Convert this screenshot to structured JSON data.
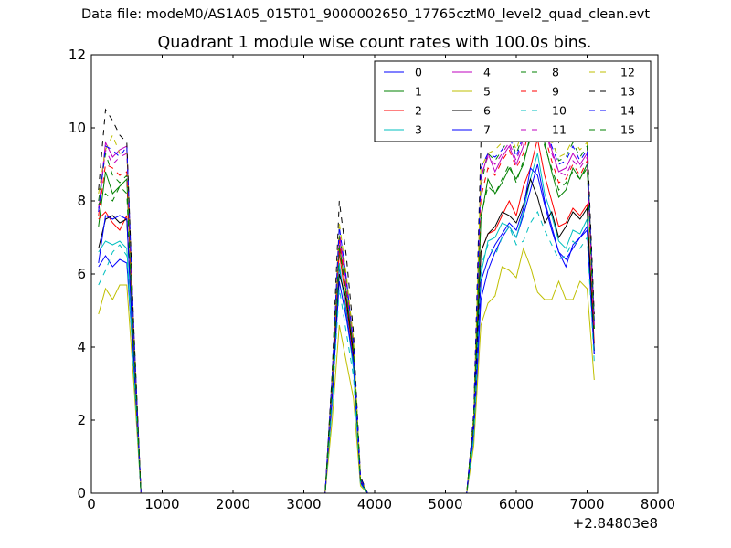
{
  "suptitle": "Data file: modeM0/AS1A05_015T01_9000002650_17765cztM0_level2_quad_clean.evt",
  "chart_data": {
    "type": "line",
    "title": "Quadrant 1 module wise count rates with 100.0s bins.",
    "xlabel": "",
    "ylabel": "",
    "xlim": [
      0,
      8000
    ],
    "ylim": [
      0,
      12
    ],
    "x_offset_label": "+2.84803e8",
    "xticks": [
      0,
      1000,
      2000,
      3000,
      4000,
      5000,
      6000,
      7000,
      8000
    ],
    "yticks": [
      0,
      2,
      4,
      6,
      8,
      10,
      12
    ],
    "grid": false,
    "legend_position": "top-right",
    "legend_columns": 4,
    "x": [
      100,
      200,
      300,
      400,
      500,
      600,
      700,
      800,
      900,
      1000,
      1100,
      1200,
      1300,
      1400,
      1500,
      1600,
      1700,
      1800,
      1900,
      2000,
      2100,
      2200,
      2300,
      2400,
      2500,
      2600,
      2700,
      2800,
      2900,
      3000,
      3100,
      3200,
      3300,
      3400,
      3500,
      3600,
      3700,
      3800,
      3900,
      4000,
      4100,
      4200,
      4300,
      4400,
      4500,
      4600,
      4700,
      4800,
      4900,
      5000,
      5100,
      5200,
      5300,
      5400,
      5500,
      5600,
      5700,
      5800,
      5900,
      6000,
      6100,
      6200,
      6300,
      6400,
      6500,
      6600,
      6700,
      6800,
      6900,
      7000,
      7100
    ],
    "series": [
      {
        "name": "0",
        "color": "#0000ff",
        "dash": "solid",
        "values": [
          6.2,
          6.5,
          6.2,
          6.4,
          6.3,
          3.5,
          0,
          0,
          0,
          0,
          0,
          0,
          0,
          0,
          0,
          0,
          0,
          0,
          0,
          0,
          0,
          0,
          0,
          0,
          0,
          0,
          0,
          0,
          0,
          0,
          0,
          0,
          0,
          2.5,
          6.2,
          5.0,
          3.5,
          0.3,
          0,
          0,
          0,
          0,
          0,
          0,
          0,
          0,
          0,
          0,
          0,
          0,
          0,
          0,
          0,
          1.5,
          5.3,
          6.1,
          6.6,
          7.0,
          7.3,
          7.0,
          7.6,
          8.3,
          9.0,
          8.0,
          7.3,
          6.6,
          6.2,
          6.8,
          7.0,
          7.3,
          3.8
        ]
      },
      {
        "name": "1",
        "color": "#008000",
        "dash": "solid",
        "values": [
          7.3,
          8.8,
          8.2,
          8.4,
          8.6,
          4.0,
          0,
          0,
          0,
          0,
          0,
          0,
          0,
          0,
          0,
          0,
          0,
          0,
          0,
          0,
          0,
          0,
          0,
          0,
          0,
          0,
          0,
          0,
          0,
          0,
          0,
          0,
          0,
          3.0,
          6.8,
          5.5,
          3.9,
          0.35,
          0,
          0,
          0,
          0,
          0,
          0,
          0,
          0,
          0,
          0,
          0,
          0,
          0,
          0,
          0,
          2.0,
          7.5,
          8.6,
          8.2,
          8.5,
          8.9,
          8.6,
          9.0,
          9.8,
          10.3,
          9.6,
          8.8,
          8.1,
          8.3,
          8.9,
          8.6,
          9.0,
          4.5
        ]
      },
      {
        "name": "2",
        "color": "#ff0000",
        "dash": "solid",
        "values": [
          7.5,
          7.7,
          7.4,
          7.2,
          7.6,
          3.7,
          0,
          0,
          0,
          0,
          0,
          0,
          0,
          0,
          0,
          0,
          0,
          0,
          0,
          0,
          0,
          0,
          0,
          0,
          0,
          0,
          0,
          0,
          0,
          0,
          0,
          0,
          0,
          2.8,
          6.6,
          5.2,
          3.7,
          0.3,
          0,
          0,
          0,
          0,
          0,
          0,
          0,
          0,
          0,
          0,
          0,
          0,
          0,
          0,
          0,
          1.8,
          6.6,
          7.1,
          7.2,
          7.6,
          8.0,
          7.6,
          8.4,
          8.9,
          9.7,
          8.7,
          8.0,
          7.3,
          7.4,
          7.8,
          7.6,
          7.9,
          4.1
        ]
      },
      {
        "name": "3",
        "color": "#00bfbf",
        "dash": "solid",
        "values": [
          6.6,
          6.9,
          6.8,
          6.9,
          6.7,
          3.4,
          0,
          0,
          0,
          0,
          0,
          0,
          0,
          0,
          0,
          0,
          0,
          0,
          0,
          0,
          0,
          0,
          0,
          0,
          0,
          0,
          0,
          0,
          0,
          0,
          0,
          0,
          0,
          2.6,
          6.3,
          4.9,
          3.4,
          0.25,
          0,
          0,
          0,
          0,
          0,
          0,
          0,
          0,
          0,
          0,
          0,
          0,
          0,
          0,
          0,
          1.6,
          6.0,
          6.9,
          7.0,
          7.4,
          7.3,
          7.0,
          7.7,
          8.6,
          9.3,
          8.2,
          7.6,
          6.9,
          6.7,
          7.2,
          7.1,
          7.5,
          3.9
        ]
      },
      {
        "name": "4",
        "color": "#bf00bf",
        "dash": "solid",
        "values": [
          7.7,
          9.6,
          9.2,
          9.4,
          9.5,
          4.4,
          0,
          0,
          0,
          0,
          0,
          0,
          0,
          0,
          0,
          0,
          0,
          0,
          0,
          0,
          0,
          0,
          0,
          0,
          0,
          0,
          0,
          0,
          0,
          0,
          0,
          0,
          0,
          3.2,
          7.0,
          5.8,
          4.1,
          0.4,
          0,
          0,
          0,
          0,
          0,
          0,
          0,
          0,
          0,
          0,
          0,
          0,
          0,
          0,
          0,
          2.1,
          8.6,
          9.3,
          8.8,
          9.2,
          9.5,
          9.0,
          9.5,
          10.4,
          11.2,
          10.1,
          9.4,
          8.8,
          8.9,
          9.3,
          9.0,
          9.3,
          4.7
        ]
      },
      {
        "name": "5",
        "color": "#bfbf00",
        "dash": "solid",
        "values": [
          4.9,
          5.6,
          5.3,
          5.7,
          5.7,
          3.0,
          0,
          0,
          0,
          0,
          0,
          0,
          0,
          0,
          0,
          0,
          0,
          0,
          0,
          0,
          0,
          0,
          0,
          0,
          0,
          0,
          0,
          0,
          0,
          0,
          0,
          0,
          0,
          2.0,
          4.6,
          3.6,
          2.6,
          0.2,
          0,
          0,
          0,
          0,
          0,
          0,
          0,
          0,
          0,
          0,
          0,
          0,
          0,
          0,
          0,
          1.3,
          4.6,
          5.2,
          5.4,
          6.2,
          6.1,
          5.9,
          6.7,
          6.2,
          5.5,
          5.3,
          5.3,
          5.8,
          5.3,
          5.3,
          5.8,
          5.6,
          3.1
        ]
      },
      {
        "name": "6",
        "color": "#000000",
        "dash": "solid",
        "values": [
          6.7,
          7.5,
          7.6,
          7.4,
          7.5,
          3.7,
          0,
          0,
          0,
          0,
          0,
          0,
          0,
          0,
          0,
          0,
          0,
          0,
          0,
          0,
          0,
          0,
          0,
          0,
          0,
          0,
          0,
          0,
          0,
          0,
          0,
          0,
          0,
          2.7,
          6.0,
          5.3,
          3.8,
          0.3,
          0,
          0,
          0,
          0,
          0,
          0,
          0,
          0,
          0,
          0,
          0,
          0,
          0,
          0,
          0,
          1.9,
          6.6,
          7.1,
          7.3,
          7.7,
          7.6,
          7.4,
          7.9,
          8.6,
          8.1,
          7.4,
          7.7,
          7.0,
          7.3,
          7.7,
          7.5,
          7.8,
          3.9
        ]
      },
      {
        "name": "7",
        "color": "#0000ff",
        "dash": "solid",
        "values": [
          6.3,
          7.6,
          7.5,
          7.6,
          7.5,
          3.6,
          0,
          0,
          0,
          0,
          0,
          0,
          0,
          0,
          0,
          0,
          0,
          0,
          0,
          0,
          0,
          0,
          0,
          0,
          0,
          0,
          0,
          0,
          0,
          0,
          0,
          0,
          0,
          2.6,
          5.8,
          4.8,
          3.6,
          0.3,
          0,
          0,
          0,
          0,
          0,
          0,
          0,
          0,
          0,
          0,
          0,
          0,
          0,
          0,
          0,
          1.7,
          5.8,
          6.4,
          6.8,
          7.1,
          7.4,
          7.2,
          7.8,
          8.9,
          8.7,
          7.9,
          7.2,
          6.6,
          6.4,
          6.7,
          7.0,
          7.2,
          3.8
        ]
      },
      {
        "name": "8",
        "color": "#008000",
        "dash": "dashed",
        "values": [
          8.0,
          9.3,
          8.7,
          8.5,
          8.7,
          4.1,
          0,
          0,
          0,
          0,
          0,
          0,
          0,
          0,
          0,
          0,
          0,
          0,
          0,
          0,
          0,
          0,
          0,
          0,
          0,
          0,
          0,
          0,
          0,
          0,
          0,
          0,
          0,
          3.1,
          7.1,
          5.9,
          4.2,
          0.4,
          0,
          0,
          0,
          0,
          0,
          0,
          0,
          0,
          0,
          0,
          0,
          0,
          0,
          0,
          0,
          2.1,
          8.4,
          9.3,
          9.1,
          9.4,
          9.7,
          9.3,
          9.8,
          10.6,
          11.6,
          10.4,
          9.7,
          9.1,
          9.2,
          9.6,
          9.2,
          9.5,
          4.6
        ]
      },
      {
        "name": "9",
        "color": "#ff0000",
        "dash": "dashed",
        "values": [
          7.6,
          9.0,
          8.9,
          8.7,
          8.8,
          4.2,
          0,
          0,
          0,
          0,
          0,
          0,
          0,
          0,
          0,
          0,
          0,
          0,
          0,
          0,
          0,
          0,
          0,
          0,
          0,
          0,
          0,
          0,
          0,
          0,
          0,
          0,
          0,
          3.0,
          6.9,
          5.6,
          4.0,
          0.35,
          0,
          0,
          0,
          0,
          0,
          0,
          0,
          0,
          0,
          0,
          0,
          0,
          0,
          0,
          0,
          2.0,
          8.1,
          8.9,
          8.7,
          9.1,
          9.4,
          8.9,
          9.3,
          10.1,
          10.8,
          9.8,
          9.1,
          8.5,
          8.6,
          9.0,
          8.7,
          9.1,
          4.4
        ]
      },
      {
        "name": "10",
        "color": "#00bfbf",
        "dash": "dashed",
        "values": [
          5.7,
          6.1,
          6.6,
          6.8,
          6.5,
          3.3,
          0,
          0,
          0,
          0,
          0,
          0,
          0,
          0,
          0,
          0,
          0,
          0,
          0,
          0,
          0,
          0,
          0,
          0,
          0,
          0,
          0,
          0,
          0,
          0,
          0,
          0,
          0,
          2.4,
          5.6,
          4.4,
          3.2,
          0.25,
          0,
          0,
          0,
          0,
          0,
          0,
          0,
          0,
          0,
          0,
          0,
          0,
          0,
          0,
          0,
          1.5,
          6.2,
          6.8,
          6.5,
          7.0,
          7.3,
          6.8,
          6.9,
          7.4,
          7.7,
          7.2,
          6.8,
          6.4,
          6.5,
          6.9,
          6.7,
          7.0,
          3.6
        ]
      },
      {
        "name": "11",
        "color": "#bf00bf",
        "dash": "dashed",
        "values": [
          7.8,
          9.4,
          9.0,
          9.2,
          9.3,
          4.3,
          0,
          0,
          0,
          0,
          0,
          0,
          0,
          0,
          0,
          0,
          0,
          0,
          0,
          0,
          0,
          0,
          0,
          0,
          0,
          0,
          0,
          0,
          0,
          0,
          0,
          0,
          0,
          3.1,
          7.2,
          5.7,
          4.0,
          0.4,
          0,
          0,
          0,
          0,
          0,
          0,
          0,
          0,
          0,
          0,
          0,
          0,
          0,
          0,
          0,
          2.1,
          8.7,
          9.2,
          9.0,
          9.3,
          9.6,
          9.1,
          9.7,
          10.5,
          11.0,
          10.0,
          9.3,
          8.8,
          8.7,
          9.1,
          8.9,
          9.2,
          4.6
        ]
      },
      {
        "name": "12",
        "color": "#bfbf00",
        "dash": "dashed",
        "values": [
          8.2,
          9.4,
          9.8,
          9.3,
          9.4,
          4.4,
          0,
          0,
          0,
          0,
          0,
          0,
          0,
          0,
          0,
          0,
          0,
          0,
          0,
          0,
          0,
          0,
          0,
          0,
          0,
          0,
          0,
          0,
          0,
          0,
          0,
          0,
          0,
          3.1,
          7.4,
          6.0,
          4.2,
          0.4,
          0,
          0,
          0,
          0,
          0,
          0,
          0,
          0,
          0,
          0,
          0,
          0,
          0,
          0,
          0,
          2.1,
          8.9,
          9.3,
          9.4,
          9.6,
          9.9,
          9.4,
          10.0,
          10.8,
          11.5,
          10.3,
          9.6,
          9.2,
          9.3,
          9.7,
          9.4,
          9.6,
          4.7
        ]
      },
      {
        "name": "13",
        "color": "#000000",
        "dash": "dashed",
        "values": [
          8.3,
          10.5,
          10.2,
          9.8,
          9.6,
          4.5,
          0,
          0,
          0,
          0,
          0,
          0,
          0,
          0,
          0,
          0,
          0,
          0,
          0,
          0,
          0,
          0,
          0,
          0,
          0,
          0,
          0,
          0,
          0,
          0,
          0,
          0,
          0,
          3.3,
          8.0,
          6.5,
          4.4,
          0.45,
          0,
          0,
          0,
          0,
          0,
          0,
          0,
          0,
          0,
          0,
          0,
          0,
          0,
          0,
          0,
          2.2,
          9.6,
          10.4,
          9.8,
          10.3,
          10.6,
          9.9,
          10.9,
          11.6,
          11.8,
          10.9,
          10.3,
          9.6,
          9.9,
          10.1,
          9.6,
          9.8,
          4.9
        ]
      },
      {
        "name": "14",
        "color": "#0000ff",
        "dash": "dashed",
        "values": [
          7.7,
          9.5,
          9.4,
          9.2,
          9.5,
          4.4,
          0,
          0,
          0,
          0,
          0,
          0,
          0,
          0,
          0,
          0,
          0,
          0,
          0,
          0,
          0,
          0,
          0,
          0,
          0,
          0,
          0,
          0,
          0,
          0,
          0,
          0,
          0,
          3.2,
          7.3,
          5.9,
          4.1,
          0.4,
          0,
          0,
          0,
          0,
          0,
          0,
          0,
          0,
          0,
          0,
          0,
          0,
          0,
          0,
          0,
          2.1,
          8.9,
          9.3,
          9.2,
          9.4,
          9.8,
          9.2,
          9.8,
          10.6,
          11.3,
          10.2,
          9.5,
          9.0,
          9.1,
          9.5,
          9.1,
          9.4,
          4.7
        ]
      },
      {
        "name": "15",
        "color": "#008000",
        "dash": "dashed",
        "values": [
          7.9,
          8.2,
          8.0,
          8.4,
          8.2,
          4.0,
          0,
          0,
          0,
          0,
          0,
          0,
          0,
          0,
          0,
          0,
          0,
          0,
          0,
          0,
          0,
          0,
          0,
          0,
          0,
          0,
          0,
          0,
          0,
          0,
          0,
          0,
          0,
          3.0,
          6.7,
          5.4,
          3.9,
          0.35,
          0,
          0,
          0,
          0,
          0,
          0,
          0,
          0,
          0,
          0,
          0,
          0,
          0,
          0,
          0,
          2.0,
          7.6,
          8.4,
          8.2,
          8.6,
          9.0,
          8.5,
          9.1,
          9.7,
          10.4,
          9.5,
          8.9,
          8.3,
          8.5,
          8.8,
          8.6,
          8.9,
          4.5
        ]
      }
    ]
  }
}
